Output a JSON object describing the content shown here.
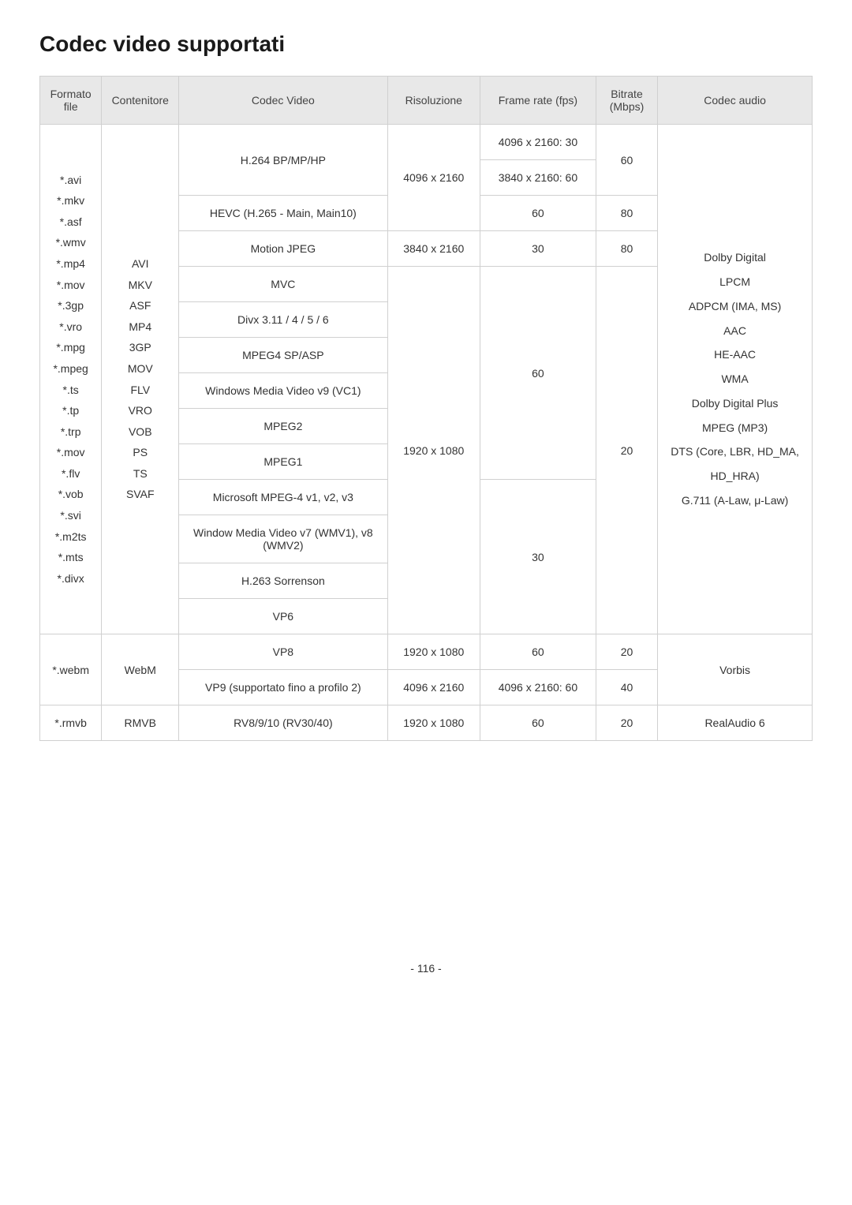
{
  "title": "Codec video supportati",
  "headers": {
    "formato": "Formato file",
    "contenitore": "Contenitore",
    "codec_video": "Codec Video",
    "risoluzione": "Risoluzione",
    "framerate": "Frame rate (fps)",
    "bitrate": "Bitrate (Mbps)",
    "codec_audio": "Codec audio"
  },
  "group1": {
    "formato_list": "*.avi\n*.mkv\n*.asf\n*.wmv\n*.mp4\n*.mov\n*.3gp\n*.vro\n*.mpg\n*.mpeg\n*.ts\n*.tp\n*.trp\n*.mov\n*.flv\n*.vob\n*.svi\n*.m2ts\n*.mts\n*.divx",
    "contenitore_list": "AVI\nMKV\nASF\nMP4\n3GP\nMOV\nFLV\nVRO\nVOB\nPS\nTS\nSVAF",
    "codecs": {
      "h264": "H.264 BP/MP/HP",
      "hevc": "HEVC (H.265 - Main, Main10)",
      "mjpeg": "Motion JPEG",
      "mvc": "MVC",
      "divx": "Divx 3.11 / 4 / 5 / 6",
      "mpeg4": "MPEG4 SP/ASP",
      "wmv9": "Windows Media Video v9 (VC1)",
      "mpeg2": "MPEG2",
      "mpeg1": "MPEG1",
      "msmpeg4": "Microsoft MPEG-4 v1, v2, v3",
      "wmv7": "Window Media Video v7 (WMV1), v8 (WMV2)",
      "h263": "H.263 Sorrenson",
      "vp6": "VP6"
    },
    "resolutions": {
      "r4096": "4096 x 2160",
      "r3840": "3840 x 2160",
      "r1920": "1920 x 1080"
    },
    "framerates": {
      "fr_4096_30": "4096 x 2160: 30",
      "fr_3840_60": "3840 x 2160: 60",
      "fr_60": "60",
      "fr_30": "30"
    },
    "bitrates": {
      "b60": "60",
      "b80": "80",
      "b20": "20"
    },
    "audio_list": "Dolby Digital\nLPCM\nADPCM (IMA, MS)\nAAC\nHE-AAC\nWMA\nDolby Digital Plus\nMPEG (MP3)\nDTS (Core, LBR, HD_MA, HD_HRA)\nG.711 (A-Law, μ-Law)"
  },
  "webm": {
    "formato": "*.webm",
    "contenitore": "WebM",
    "vp8": "VP8",
    "vp9": "VP9 (supportato fino a profilo 2)",
    "res_1920": "1920 x 1080",
    "res_4096": "4096 x 2160",
    "fr_60": "60",
    "fr_4096_60": "4096 x 2160: 60",
    "b20": "20",
    "b40": "40",
    "audio": "Vorbis"
  },
  "rmvb": {
    "formato": "*.rmvb",
    "contenitore": "RMVB",
    "codec": "RV8/9/10 (RV30/40)",
    "res": "1920 x 1080",
    "fr": "60",
    "bitrate": "20",
    "audio": "RealAudio 6"
  },
  "page_number": "- 116 -"
}
